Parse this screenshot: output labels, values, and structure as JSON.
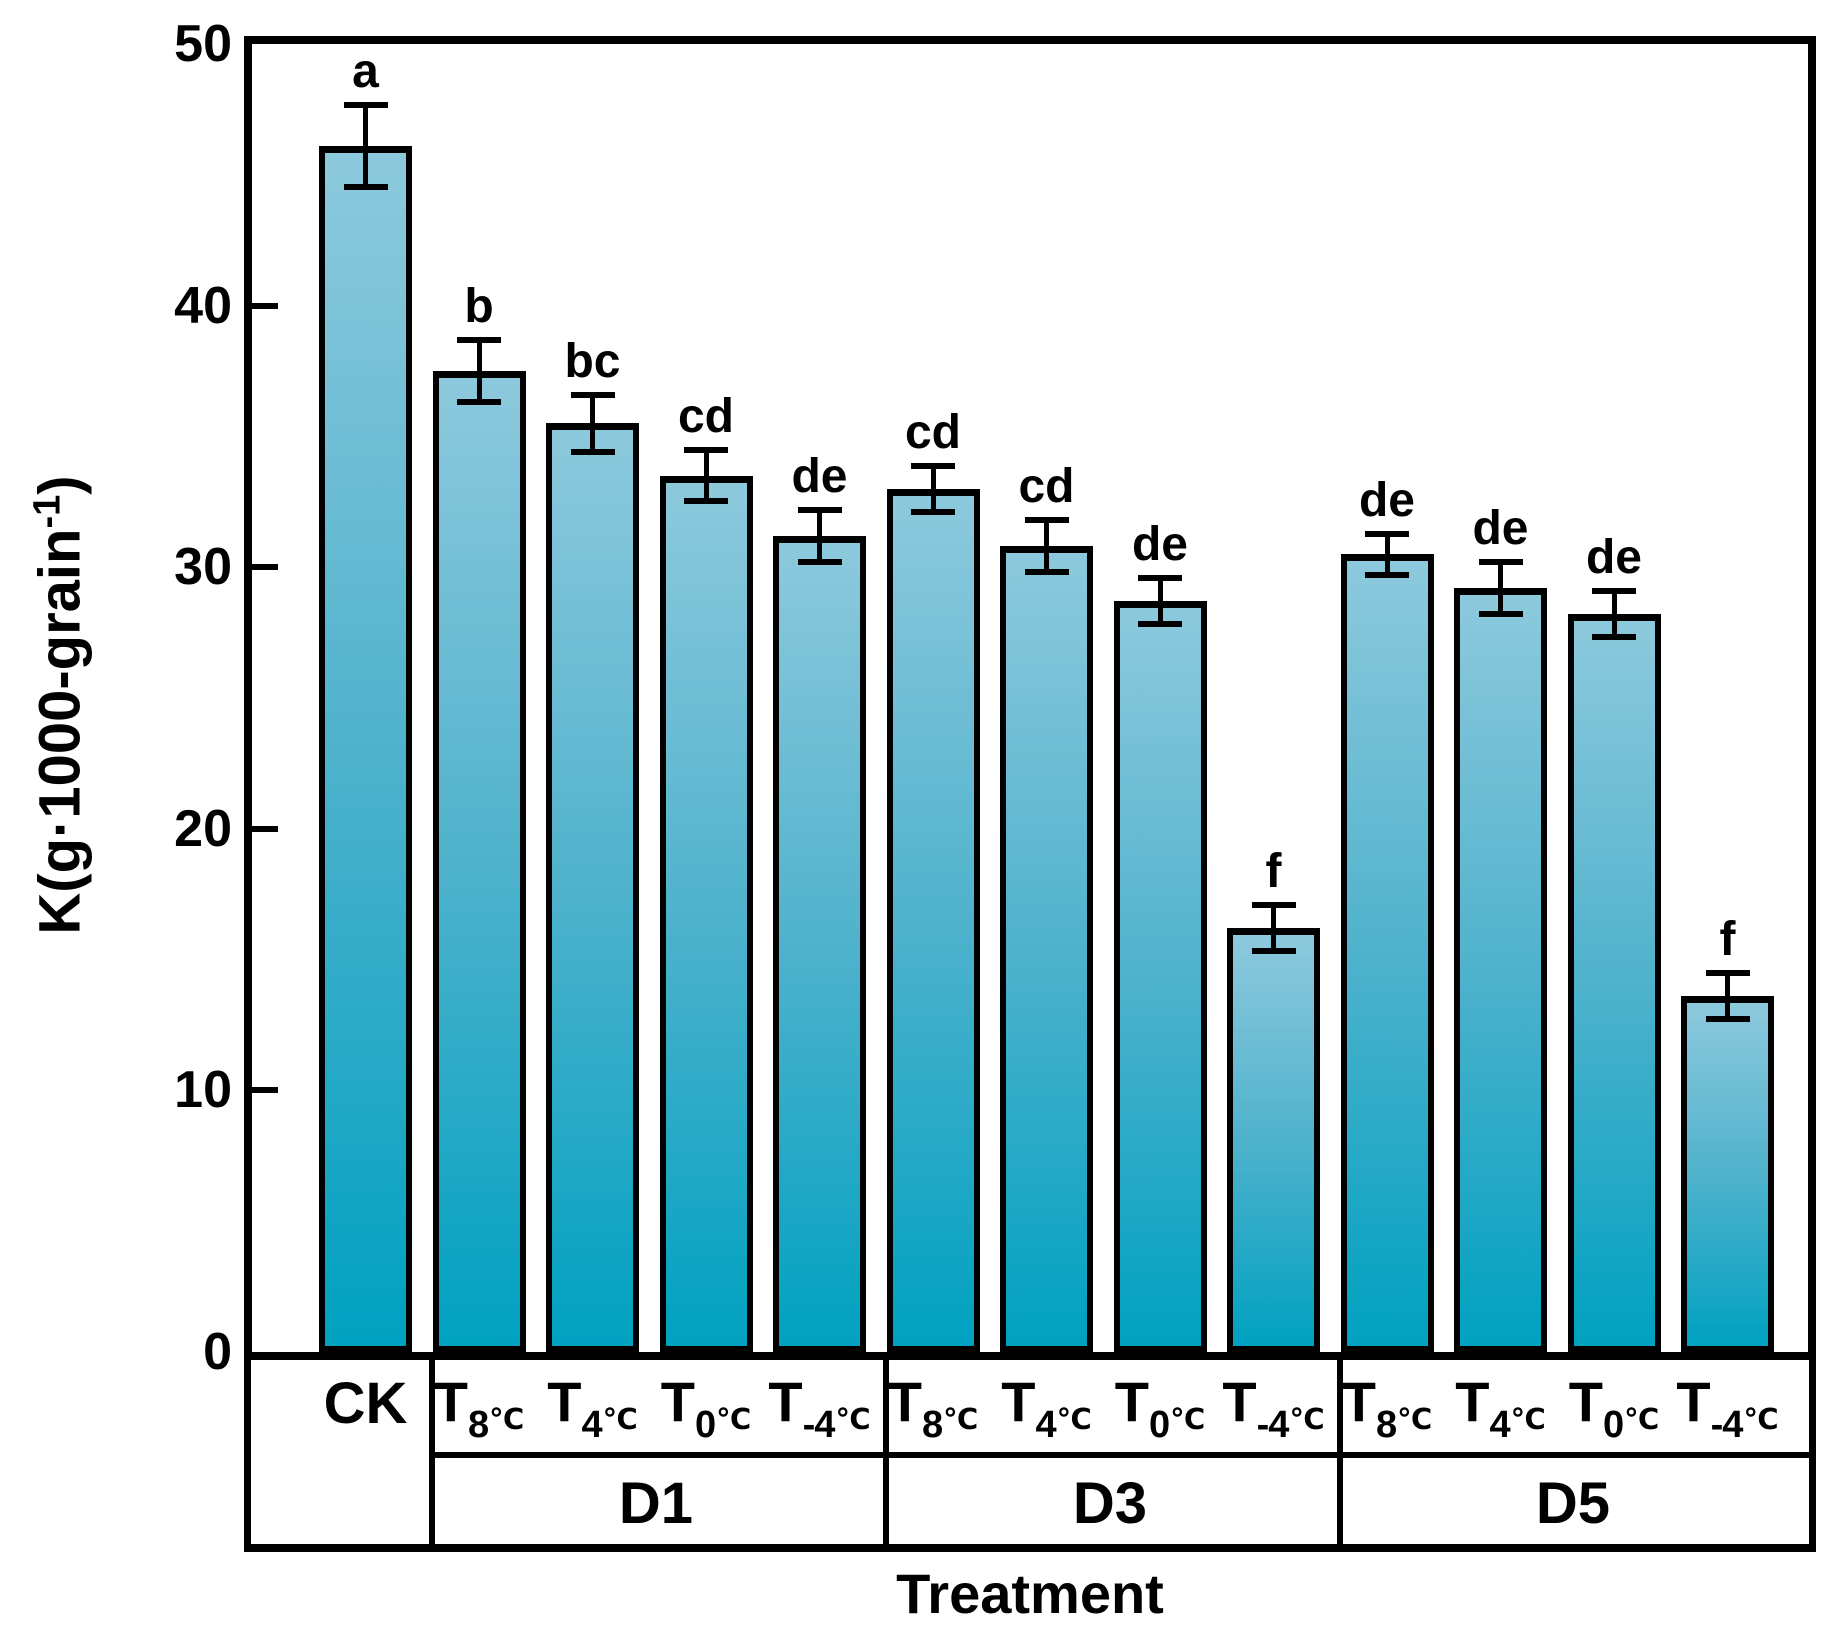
{
  "figure": {
    "background": "#ffffff",
    "frame_color": "#000000"
  },
  "y_axis": {
    "title_prefix": "K(g·1000-grain",
    "title_sup": "-1",
    "title_suffix": ")",
    "ticks": [
      {
        "value": 50,
        "label": "50"
      },
      {
        "value": 40,
        "label": "40"
      },
      {
        "value": 30,
        "label": "30"
      },
      {
        "value": 20,
        "label": "20"
      },
      {
        "value": 10,
        "label": "10"
      },
      {
        "value": 0,
        "label": "0"
      }
    ]
  },
  "x_axis": {
    "title": "Treatment",
    "control_label": "CK",
    "temp_prefix": "T",
    "temp_unit": "℃"
  },
  "chart_data": {
    "type": "bar",
    "title": "",
    "xlabel": "Treatment",
    "ylabel": "K(g·1000-grain^-1)",
    "ylim": [
      0,
      50
    ],
    "yticks": [
      0,
      10,
      20,
      30,
      40,
      50
    ],
    "grid": false,
    "legend": false,
    "bar_colors": {
      "bottom": "#00a1c1",
      "mid": "#4fb2cc",
      "top": "#8dc9dd",
      "stroke": "#000000"
    },
    "categories": [
      "CK",
      "D1-T8",
      "D1-T4",
      "D1-T0",
      "D1-T-4",
      "D3-T8",
      "D3-T4",
      "D3-T0",
      "D3-T-4",
      "D5-T8",
      "D5-T4",
      "D5-T0",
      "D5-T-4"
    ],
    "bars": [
      {
        "group": "CK",
        "temp": null,
        "value": 46.1,
        "error": 1.7,
        "letter": "a"
      },
      {
        "group": "D1",
        "temp": "8",
        "value": 37.5,
        "error": 1.3,
        "letter": "b"
      },
      {
        "group": "D1",
        "temp": "4",
        "value": 35.5,
        "error": 1.2,
        "letter": "bc"
      },
      {
        "group": "D1",
        "temp": "0",
        "value": 33.5,
        "error": 1.1,
        "letter": "cd"
      },
      {
        "group": "D1",
        "temp": "-4",
        "value": 31.2,
        "error": 1.1,
        "letter": "de"
      },
      {
        "group": "D3",
        "temp": "8",
        "value": 33.0,
        "error": 1.0,
        "letter": "cd"
      },
      {
        "group": "D3",
        "temp": "4",
        "value": 30.8,
        "error": 1.1,
        "letter": "cd"
      },
      {
        "group": "D3",
        "temp": "0",
        "value": 28.7,
        "error": 1.0,
        "letter": "de"
      },
      {
        "group": "D3",
        "temp": "-4",
        "value": 16.2,
        "error": 1.0,
        "letter": "f"
      },
      {
        "group": "D5",
        "temp": "8",
        "value": 30.5,
        "error": 0.9,
        "letter": "de"
      },
      {
        "group": "D5",
        "temp": "4",
        "value": 29.2,
        "error": 1.1,
        "letter": "de"
      },
      {
        "group": "D5",
        "temp": "0",
        "value": 28.2,
        "error": 1.0,
        "letter": "de"
      },
      {
        "group": "D5",
        "temp": "-4",
        "value": 13.6,
        "error": 1.0,
        "letter": "f"
      }
    ],
    "groups": [
      {
        "label": "D1",
        "temps": [
          "8",
          "4",
          "0",
          "-4"
        ]
      },
      {
        "label": "D3",
        "temps": [
          "8",
          "4",
          "0",
          "-4"
        ]
      },
      {
        "label": "D5",
        "temps": [
          "8",
          "4",
          "0",
          "-4"
        ]
      }
    ]
  }
}
